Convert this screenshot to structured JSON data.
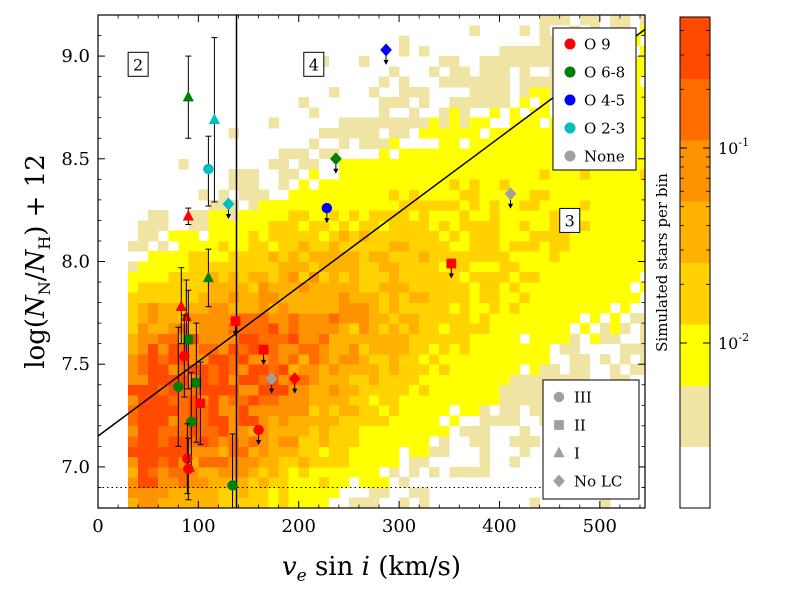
{
  "chart_data": {
    "type": "scatter",
    "xlabel": "v_e sin i (km/s)",
    "ylabel": "log(N_N/N_H) + 12",
    "xlim": [
      0,
      545
    ],
    "ylim": [
      6.8,
      9.2
    ],
    "x_ticks": [
      0,
      100,
      200,
      300,
      400,
      500
    ],
    "y_ticks": [
      7.0,
      7.5,
      8.0,
      8.5,
      9.0
    ],
    "x_tick_labels": [
      "0",
      "100",
      "200",
      "300",
      "400",
      "500"
    ],
    "y_tick_labels": [
      "7.0",
      "7.5",
      "8.0",
      "8.5",
      "9.0"
    ],
    "background": "2D histogram of simulated stars (log colour scale, per bin)",
    "colorbar": {
      "label": "Simulated stars per bin",
      "tick_labels": [
        "10^-1",
        "10^-2"
      ],
      "tick_values": [
        0.1,
        0.01
      ],
      "log": true,
      "levels": [
        {
          "color": "#ffffff"
        },
        {
          "color": "#efe4a4"
        },
        {
          "color": "#ffff00"
        },
        {
          "color": "#ffd200"
        },
        {
          "color": "#ffb300"
        },
        {
          "color": "#ff9200"
        },
        {
          "color": "#ff6d00"
        },
        {
          "color": "#ff4a00"
        }
      ]
    },
    "legend_spectral_type": [
      {
        "label": "O 9",
        "color": "#ff0000"
      },
      {
        "label": "O 6-8",
        "color": "#008000"
      },
      {
        "label": "O 4-5",
        "color": "#0000ff"
      },
      {
        "label": "O 2-3",
        "color": "#00bfbf"
      },
      {
        "label": "None",
        "color": "#a0a0a0"
      }
    ],
    "legend_luminosity_class": [
      {
        "label": "III",
        "marker": "circle"
      },
      {
        "label": "II",
        "marker": "square"
      },
      {
        "label": "I",
        "marker": "triangle"
      },
      {
        "label": "No LC",
        "marker": "diamond"
      }
    ],
    "region_labels": [
      {
        "text": "2",
        "x": 40,
        "y": 8.96
      },
      {
        "text": "4",
        "x": 215,
        "y": 8.96
      },
      {
        "text": "3",
        "x": 470,
        "y": 8.2
      }
    ],
    "boundary_line": {
      "x0": 0,
      "y0": 7.15,
      "x1": 545,
      "y1": 9.13
    },
    "vertical_line": {
      "x": 138
    },
    "threshold_line": {
      "y": 6.9,
      "style": "dotted"
    },
    "points": [
      {
        "x": 90,
        "y": 8.8,
        "sp": "O 6-8",
        "lc": "I",
        "err": [
          8.6,
          9.0
        ]
      },
      {
        "x": 116,
        "y": 8.69,
        "sp": "O 2-3",
        "lc": "I",
        "err": [
          8.29,
          9.09
        ]
      },
      {
        "x": 110,
        "y": 8.45,
        "sp": "O 2-3",
        "lc": "III",
        "err": [
          8.27,
          8.61
        ]
      },
      {
        "x": 130,
        "y": 8.28,
        "sp": "O 2-3",
        "lc": "No LC",
        "upper": true
      },
      {
        "x": 90,
        "y": 8.22,
        "sp": "O 9",
        "lc": "I",
        "err": [
          8.18,
          8.26
        ]
      },
      {
        "x": 110,
        "y": 7.92,
        "sp": "O 6-8",
        "lc": "I",
        "err": [
          7.78,
          8.06
        ]
      },
      {
        "x": 228,
        "y": 8.26,
        "sp": "O 4-5",
        "lc": "III",
        "upper": true
      },
      {
        "x": 237,
        "y": 8.5,
        "sp": "O 6-8",
        "lc": "No LC",
        "upper": true
      },
      {
        "x": 287,
        "y": 9.03,
        "sp": "O 4-5",
        "lc": "No LC",
        "upper": true
      },
      {
        "x": 411,
        "y": 8.33,
        "sp": "None",
        "lc": "No LC",
        "upper": true
      },
      {
        "x": 352,
        "y": 7.99,
        "sp": "O 9",
        "lc": "II",
        "upper": true
      },
      {
        "x": 137,
        "y": 7.71,
        "sp": "O 9",
        "lc": "II",
        "upper": true
      },
      {
        "x": 165,
        "y": 7.57,
        "sp": "O 9",
        "lc": "II",
        "upper": true
      },
      {
        "x": 196,
        "y": 7.43,
        "sp": "O 9",
        "lc": "No LC",
        "upper": true
      },
      {
        "x": 173,
        "y": 7.43,
        "sp": "None",
        "lc": "No LC",
        "upper": true
      },
      {
        "x": 160,
        "y": 7.18,
        "sp": "O 9",
        "lc": "III",
        "upper": true
      },
      {
        "x": 83,
        "y": 7.78,
        "sp": "O 9",
        "lc": "I",
        "err": [
          7.6,
          7.97
        ]
      },
      {
        "x": 88,
        "y": 7.73,
        "sp": "O 9",
        "lc": "I",
        "err": [
          7.55,
          7.91
        ]
      },
      {
        "x": 90,
        "y": 7.62,
        "sp": "O 6-8",
        "lc": "II",
        "err": [
          7.38,
          7.86
        ]
      },
      {
        "x": 86,
        "y": 7.54,
        "sp": "O 9",
        "lc": "III",
        "err": [
          7.34,
          7.74
        ]
      },
      {
        "x": 80,
        "y": 7.39,
        "sp": "O 6-8",
        "lc": "III",
        "err": [
          7.1,
          7.68
        ]
      },
      {
        "x": 98,
        "y": 7.41,
        "sp": "O 6-8",
        "lc": "II",
        "err": [
          7.12,
          7.7
        ]
      },
      {
        "x": 102,
        "y": 7.31,
        "sp": "O 9",
        "lc": "II",
        "err": [
          7.11,
          7.51
        ]
      },
      {
        "x": 93,
        "y": 7.22,
        "sp": "O 6-8",
        "lc": "III",
        "err": [
          6.98,
          7.46
        ]
      },
      {
        "x": 89,
        "y": 7.04,
        "sp": "O 9",
        "lc": "III",
        "err": [
          6.87,
          7.21
        ]
      },
      {
        "x": 90,
        "y": 6.99,
        "sp": "O 9",
        "lc": "III",
        "err": [
          6.84,
          7.14
        ]
      },
      {
        "x": 134,
        "y": 6.91,
        "sp": "O 6-8",
        "lc": "III",
        "err": [
          6.8,
          7.16
        ]
      }
    ]
  }
}
